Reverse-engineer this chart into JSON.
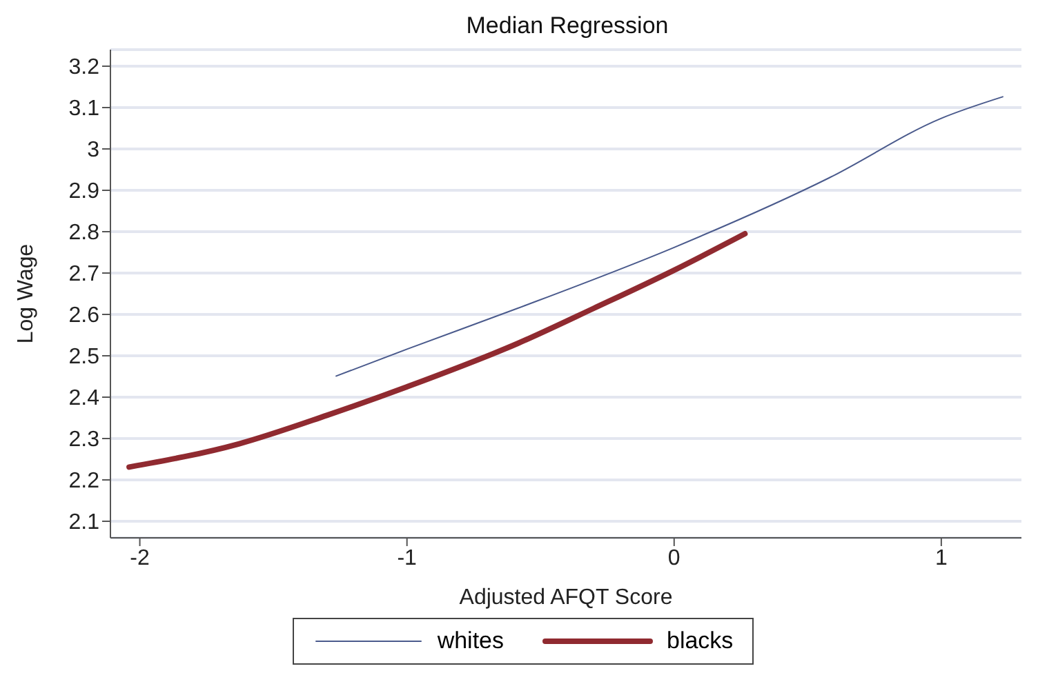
{
  "chart_data": {
    "type": "line",
    "title": "Median Regression",
    "xlabel": "Adjusted AFQT Score",
    "ylabel": "Log Wage",
    "xlim": [
      -2.11,
      1.3
    ],
    "xticks": [
      -2,
      -1,
      0,
      1
    ],
    "ylim": [
      2.06,
      3.24
    ],
    "yticks": [
      2.1,
      2.2,
      2.3,
      2.4,
      2.5,
      2.6,
      2.7,
      2.8,
      2.9,
      3,
      3.1,
      3.2
    ],
    "grid": "y",
    "legend": "bottom",
    "marker": "none",
    "line_style": "solid",
    "series": [
      {
        "name": "whites",
        "color": "#4a5a8c",
        "x": [
          -1.265,
          -1,
          -0.585,
          0,
          0.58,
          1,
          1.23
        ],
        "values": [
          2.451,
          2.516,
          2.615,
          2.762,
          2.93,
          3.074,
          3.126
        ]
      },
      {
        "name": "blacks",
        "color": "#902a30",
        "x": [
          -2.04,
          -1.63,
          -1.3,
          -1,
          -0.585,
          -0.3,
          0,
          0.265
        ],
        "values": [
          2.231,
          2.287,
          2.356,
          2.425,
          2.53,
          2.615,
          2.707,
          2.795
        ]
      }
    ]
  }
}
